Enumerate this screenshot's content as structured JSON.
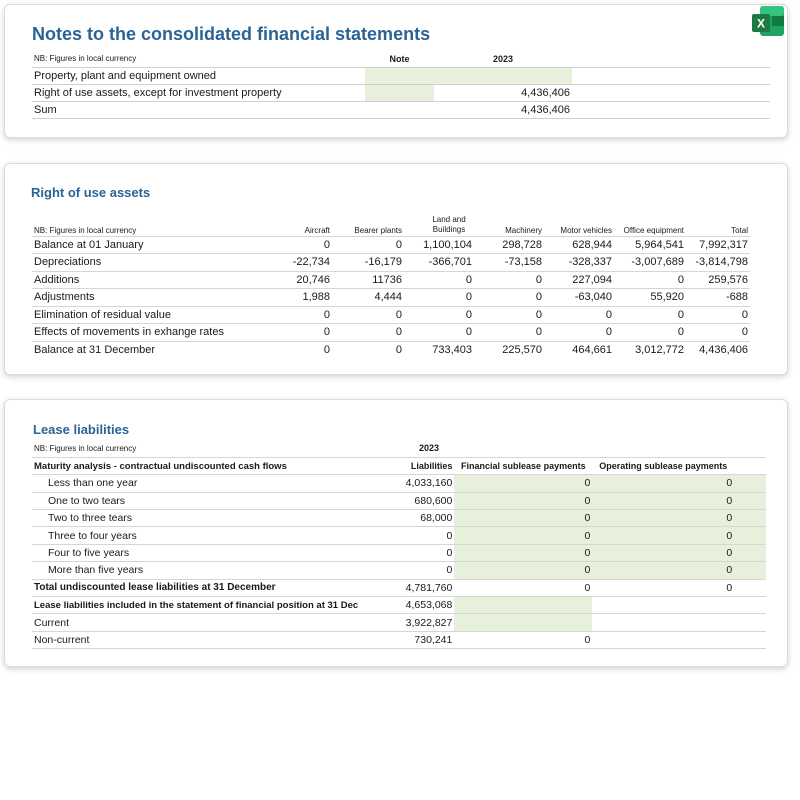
{
  "card1": {
    "title": "Notes to the consolidated financial statements",
    "nb": "NB: Figures in local currency",
    "col_note": "Note",
    "col_year": "2023",
    "rows": [
      {
        "label": "Property, plant and equipment owned",
        "value": ""
      },
      {
        "label": "Right of use assets, except for investment property",
        "value": "4,436,406"
      },
      {
        "label": "Sum",
        "value": "4,436,406"
      }
    ]
  },
  "card2": {
    "title": "Right of use assets",
    "nb": "NB: Figures in local currency",
    "columns": [
      "Aircraft",
      "Bearer plants",
      "Land and Buildings",
      "Machinery",
      "Motor vehicles",
      "Office equipment",
      "Total"
    ],
    "rows": [
      {
        "label": "Balance at 01 January",
        "values": [
          "0",
          "0",
          "1,100,104",
          "298,728",
          "628,944",
          "5,964,541",
          "7,992,317"
        ]
      },
      {
        "label": "Depreciations",
        "values": [
          "-22,734",
          "-16,179",
          "-366,701",
          "-73,158",
          "-328,337",
          "-3,007,689",
          "-3,814,798"
        ]
      },
      {
        "label": "Additions",
        "values": [
          "20,746",
          "11736",
          "0",
          "0",
          "227,094",
          "0",
          "259,576"
        ]
      },
      {
        "label": "Adjustments",
        "values": [
          "1,988",
          "4,444",
          "0",
          "0",
          "-63,040",
          "55,920",
          "-688"
        ]
      },
      {
        "label": "Elimination of residual value",
        "values": [
          "0",
          "0",
          "0",
          "0",
          "0",
          "0",
          "0"
        ]
      },
      {
        "label": "Effects of movements in exhange rates",
        "values": [
          "0",
          "0",
          "0",
          "0",
          "0",
          "0",
          "0"
        ]
      },
      {
        "label": "Balance at 31 December",
        "values": [
          "0",
          "0",
          "733,403",
          "225,570",
          "464,661",
          "3,012,772",
          "4,436,406"
        ]
      }
    ]
  },
  "card3": {
    "title": "Lease liabilities",
    "nb": "NB: Figures in local currency",
    "year": "2023",
    "header_label": "Maturity analysis - contractual undiscounted cash flows",
    "columns": [
      "Liabilities",
      "Financial sublease payments",
      "Operating sublease payments"
    ],
    "rows": [
      {
        "label": "Less than one year",
        "values": [
          "4,033,160",
          "0",
          "0"
        ]
      },
      {
        "label": "One to two tears",
        "values": [
          "680,600",
          "0",
          "0"
        ]
      },
      {
        "label": "Two to three tears",
        "values": [
          "68,000",
          "0",
          "0"
        ]
      },
      {
        "label": "Three to four years",
        "values": [
          "0",
          "0",
          "0"
        ]
      },
      {
        "label": "Four to five years",
        "values": [
          "0",
          "0",
          "0"
        ]
      },
      {
        "label": "More than five years",
        "values": [
          "0",
          "0",
          "0"
        ]
      }
    ],
    "total": {
      "label": "Total undiscounted lease liabilities at 31 December",
      "values": [
        "4,781,760",
        "0",
        "0"
      ]
    },
    "included": {
      "label": "Lease liabilities included in the statement of financial position at 31 Dec",
      "value": "4,653,068"
    },
    "current": {
      "label": "Current",
      "value": "3,922,827"
    },
    "noncurrent": {
      "label": "Non-current",
      "values": [
        "730,241",
        "0"
      ]
    }
  },
  "excel_icon": {
    "letter": "X",
    "color": "#1d7a45"
  }
}
